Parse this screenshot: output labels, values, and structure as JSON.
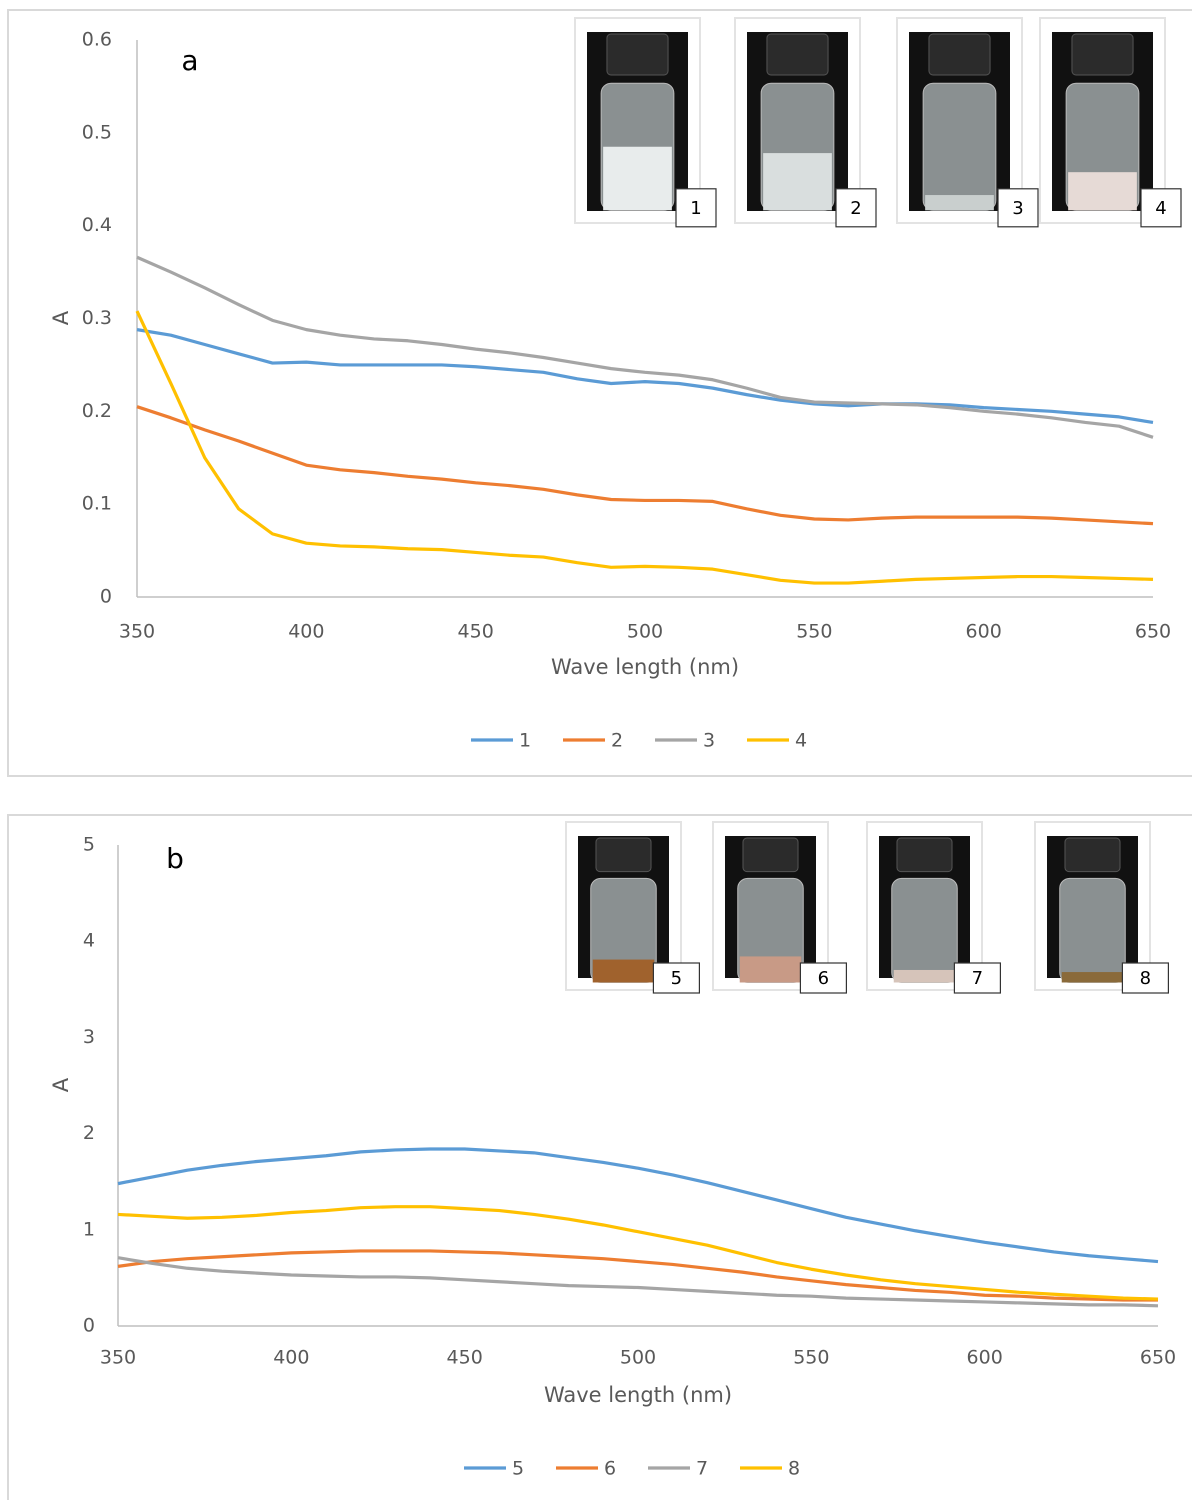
{
  "chart_data": [
    {
      "type": "line",
      "panel_label": "a",
      "x_label": "Wave length (nm)",
      "y_label": "A",
      "x": [
        350,
        360,
        370,
        380,
        390,
        400,
        410,
        420,
        430,
        440,
        450,
        460,
        470,
        480,
        490,
        500,
        510,
        520,
        530,
        540,
        550,
        560,
        570,
        580,
        590,
        600,
        610,
        620,
        630,
        640,
        650
      ],
      "xlim": [
        350,
        650
      ],
      "xticks": [
        350,
        400,
        450,
        500,
        550,
        600,
        650
      ],
      "ylim": [
        0,
        0.6
      ],
      "yticks": [
        0,
        0.1,
        0.2,
        0.3,
        0.4,
        0.5,
        0.6
      ],
      "legend": "bottom",
      "insets": [
        "1",
        "2",
        "3",
        "4"
      ],
      "series": [
        {
          "name": "1",
          "color": "#5b9bd5",
          "values": [
            0.288,
            0.282,
            0.272,
            0.262,
            0.252,
            0.253,
            0.25,
            0.25,
            0.25,
            0.25,
            0.248,
            0.245,
            0.242,
            0.235,
            0.23,
            0.232,
            0.23,
            0.225,
            0.218,
            0.212,
            0.208,
            0.206,
            0.208,
            0.208,
            0.207,
            0.204,
            0.202,
            0.2,
            0.197,
            0.194,
            0.188
          ]
        },
        {
          "name": "2",
          "color": "#ed7d31",
          "values": [
            0.205,
            0.193,
            0.18,
            0.168,
            0.155,
            0.142,
            0.137,
            0.134,
            0.13,
            0.127,
            0.123,
            0.12,
            0.116,
            0.11,
            0.105,
            0.104,
            0.104,
            0.103,
            0.095,
            0.088,
            0.084,
            0.083,
            0.085,
            0.086,
            0.086,
            0.086,
            0.086,
            0.085,
            0.083,
            0.081,
            0.079
          ]
        },
        {
          "name": "3",
          "color": "#a5a5a5",
          "values": [
            0.366,
            0.35,
            0.333,
            0.315,
            0.298,
            0.288,
            0.282,
            0.278,
            0.276,
            0.272,
            0.267,
            0.263,
            0.258,
            0.252,
            0.246,
            0.242,
            0.239,
            0.234,
            0.225,
            0.215,
            0.21,
            0.209,
            0.208,
            0.207,
            0.204,
            0.2,
            0.197,
            0.193,
            0.188,
            0.184,
            0.172
          ]
        },
        {
          "name": "4",
          "color": "#ffc000",
          "values": [
            0.308,
            0.23,
            0.15,
            0.095,
            0.068,
            0.058,
            0.055,
            0.054,
            0.052,
            0.051,
            0.048,
            0.045,
            0.043,
            0.037,
            0.032,
            0.033,
            0.032,
            0.03,
            0.024,
            0.018,
            0.015,
            0.015,
            0.017,
            0.019,
            0.02,
            0.021,
            0.022,
            0.022,
            0.021,
            0.02,
            0.019
          ]
        }
      ]
    },
    {
      "type": "line",
      "panel_label": "b",
      "x_label": "Wave length (nm)",
      "y_label": "A",
      "x": [
        350,
        360,
        370,
        380,
        390,
        400,
        410,
        420,
        430,
        440,
        450,
        460,
        470,
        480,
        490,
        500,
        510,
        520,
        530,
        540,
        550,
        560,
        570,
        580,
        590,
        600,
        610,
        620,
        630,
        640,
        650
      ],
      "xlim": [
        350,
        650
      ],
      "xticks": [
        350,
        400,
        450,
        500,
        550,
        600,
        650
      ],
      "ylim": [
        0,
        5
      ],
      "yticks": [
        0,
        1,
        2,
        3,
        4,
        5
      ],
      "legend": "bottom",
      "insets": [
        "5",
        "6",
        "7",
        "8"
      ],
      "series": [
        {
          "name": "5",
          "color": "#5b9bd5",
          "values": [
            1.48,
            1.55,
            1.62,
            1.67,
            1.71,
            1.74,
            1.77,
            1.81,
            1.83,
            1.84,
            1.84,
            1.82,
            1.8,
            1.75,
            1.7,
            1.64,
            1.57,
            1.49,
            1.4,
            1.31,
            1.22,
            1.13,
            1.06,
            0.99,
            0.93,
            0.87,
            0.82,
            0.77,
            0.73,
            0.7,
            0.67
          ]
        },
        {
          "name": "6",
          "color": "#ed7d31",
          "values": [
            0.62,
            0.67,
            0.7,
            0.72,
            0.74,
            0.76,
            0.77,
            0.78,
            0.78,
            0.78,
            0.77,
            0.76,
            0.74,
            0.72,
            0.7,
            0.67,
            0.64,
            0.6,
            0.56,
            0.51,
            0.47,
            0.43,
            0.4,
            0.37,
            0.35,
            0.32,
            0.31,
            0.29,
            0.28,
            0.27,
            0.27
          ]
        },
        {
          "name": "7",
          "color": "#a5a5a5",
          "values": [
            0.71,
            0.65,
            0.6,
            0.57,
            0.55,
            0.53,
            0.52,
            0.51,
            0.51,
            0.5,
            0.48,
            0.46,
            0.44,
            0.42,
            0.41,
            0.4,
            0.38,
            0.36,
            0.34,
            0.32,
            0.31,
            0.29,
            0.28,
            0.27,
            0.26,
            0.25,
            0.24,
            0.23,
            0.22,
            0.22,
            0.21
          ]
        },
        {
          "name": "8",
          "color": "#ffc000",
          "values": [
            1.16,
            1.14,
            1.12,
            1.13,
            1.15,
            1.18,
            1.2,
            1.23,
            1.24,
            1.24,
            1.22,
            1.2,
            1.16,
            1.11,
            1.05,
            0.98,
            0.91,
            0.84,
            0.75,
            0.66,
            0.59,
            0.53,
            0.48,
            0.44,
            0.41,
            0.38,
            0.35,
            0.33,
            0.31,
            0.29,
            0.28
          ]
        }
      ]
    }
  ]
}
